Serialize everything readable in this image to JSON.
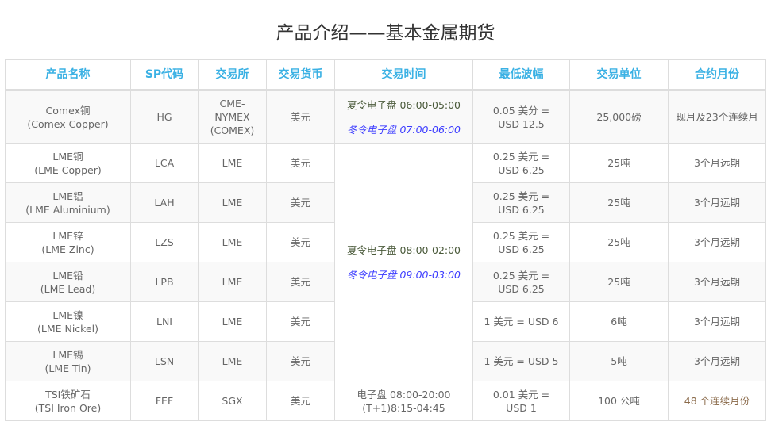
{
  "title": "产品介绍——基本金属期货",
  "headers": [
    "产品名称",
    "SP代码",
    "交易所",
    "交易货币",
    "交易时间",
    "最低波幅",
    "交易单位",
    "合约月份"
  ],
  "rows": [
    {
      "name": "Comex铜",
      "name_en": "(Comex Copper)",
      "code": "HG",
      "exchange": "CME-NYMEX (COMEX)",
      "currency": "美元",
      "time_summer": "夏令电子盘 06:00-05:00",
      "time_winter": "冬令电子盘 07:00-06:00",
      "tick": "0.05 美分 = USD 12.5",
      "unit": "25,000磅",
      "months": "现月及23个连续月"
    },
    {
      "name": "LME铜",
      "name_en": "(LME Copper)",
      "code": "LCA",
      "exchange": "LME",
      "currency": "美元",
      "tick": "0.25 美元 = USD 6.25",
      "unit": "25吨",
      "months": "3个月远期"
    },
    {
      "name": "LME铝",
      "name_en": "(LME Aluminium)",
      "code": "LAH",
      "exchange": "LME",
      "currency": "美元",
      "tick": "0.25 美元 = USD 6.25",
      "unit": "25吨",
      "months": "3个月远期"
    },
    {
      "name": "LME锌",
      "name_en": "(LME Zinc)",
      "code": "LZS",
      "exchange": "LME",
      "currency": "美元",
      "tick": "0.25 美元 = USD 6.25",
      "unit": "25吨",
      "months": "3个月远期"
    },
    {
      "name": "LME铅",
      "name_en": "(LME Lead)",
      "code": "LPB",
      "exchange": "LME",
      "currency": "美元",
      "tick": "0.25 美元 = USD 6.25",
      "unit": "25吨",
      "months": "3个月远期"
    },
    {
      "name": "LME镍",
      "name_en": "(LME Nickel)",
      "code": "LNI",
      "exchange": "LME",
      "currency": "美元",
      "tick": "1 美元 = USD 6",
      "unit": "6吨",
      "months": "3个月远期"
    },
    {
      "name": "LME锡",
      "name_en": "(LME Tin)",
      "code": "LSN",
      "exchange": "LME",
      "currency": "美元",
      "tick": "1 美元 = USD 5",
      "unit": "5吨",
      "months": "3个月远期"
    },
    {
      "name": "TSI铁矿石",
      "name_en": "(TSI Iron Ore)",
      "code": "FEF",
      "exchange": "SGX",
      "currency": "美元",
      "time_line1": "电子盘 08:00-20:00",
      "time_line2": "(T+1)8:15-04:45",
      "tick": "0.01 美元 = USD 1",
      "unit": "100 公吨",
      "months": "48 个连续月份"
    }
  ],
  "lme_time": {
    "summer": "夏令电子盘 08:00-02:00",
    "winter": "冬令电子盘 09:00-03:00"
  }
}
